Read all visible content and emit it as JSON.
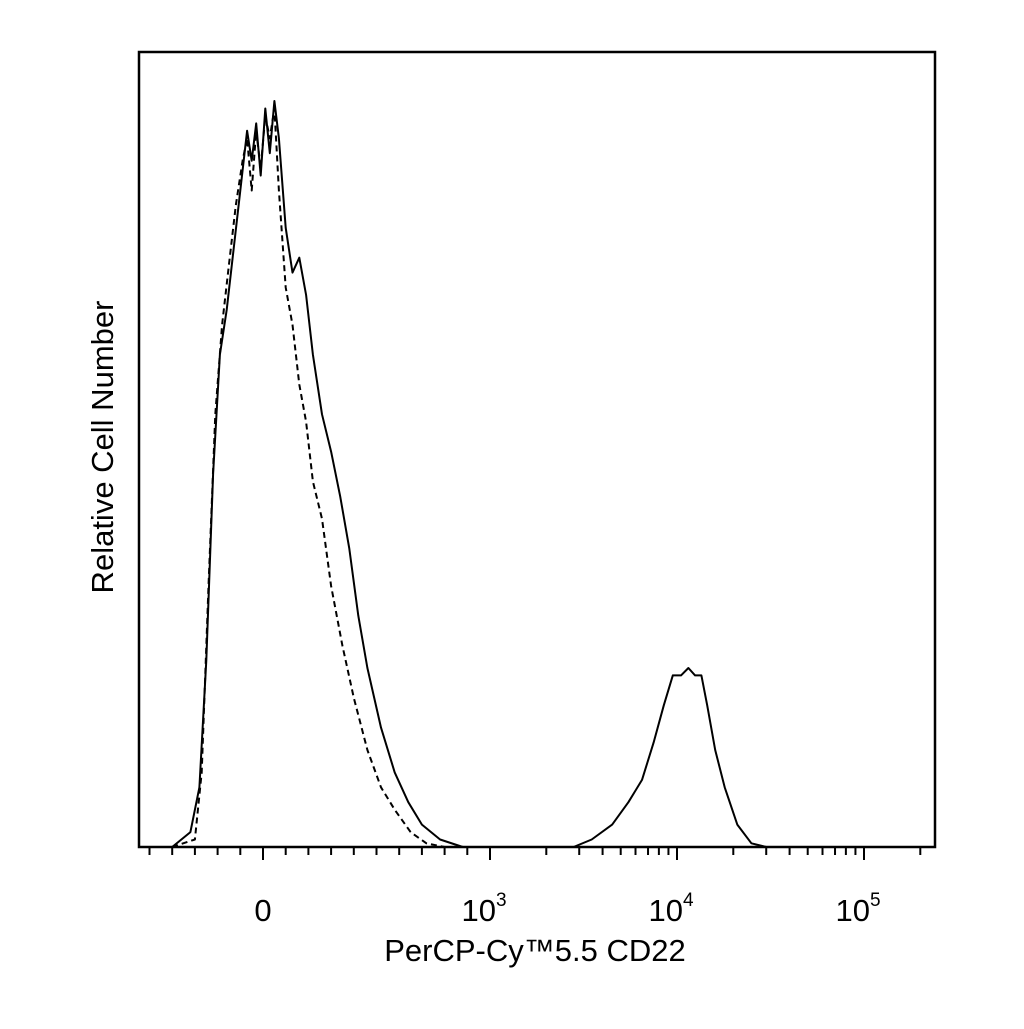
{
  "chart_data": {
    "type": "histogram",
    "xlabel": "PerCP-Cy™5.5 CD22",
    "ylabel": "Relative Cell Number",
    "x_scale": "biexponential (logicle)",
    "x_ticks": [
      {
        "value": 0,
        "label": "0",
        "exp": ""
      },
      {
        "value": 1000,
        "label": "10",
        "exp": "3"
      },
      {
        "value": 10000,
        "label": "10",
        "exp": "4"
      },
      {
        "value": 100000,
        "label": "10",
        "exp": "5"
      }
    ],
    "grid": false,
    "legend": "none",
    "series": [
      {
        "style": "solid",
        "points": [
          [
            -400,
            0
          ],
          [
            -320,
            0.02
          ],
          [
            -280,
            0.08
          ],
          [
            -250,
            0.25
          ],
          [
            -220,
            0.5
          ],
          [
            -190,
            0.66
          ],
          [
            -160,
            0.72
          ],
          [
            -130,
            0.8
          ],
          [
            -100,
            0.88
          ],
          [
            -70,
            0.96
          ],
          [
            -50,
            0.92
          ],
          [
            -30,
            0.97
          ],
          [
            -10,
            0.9
          ],
          [
            10,
            0.99
          ],
          [
            30,
            0.93
          ],
          [
            50,
            1.0
          ],
          [
            70,
            0.95
          ],
          [
            100,
            0.83
          ],
          [
            130,
            0.77
          ],
          [
            160,
            0.79
          ],
          [
            190,
            0.74
          ],
          [
            220,
            0.66
          ],
          [
            260,
            0.58
          ],
          [
            300,
            0.53
          ],
          [
            340,
            0.47
          ],
          [
            380,
            0.4
          ],
          [
            420,
            0.31
          ],
          [
            460,
            0.24
          ],
          [
            520,
            0.16
          ],
          [
            580,
            0.1
          ],
          [
            640,
            0.06
          ],
          [
            700,
            0.03
          ],
          [
            780,
            0.01
          ],
          [
            880,
            0
          ],
          [
            1500,
            0
          ],
          [
            2800,
            0
          ],
          [
            3500,
            0.01
          ],
          [
            4500,
            0.03
          ],
          [
            5500,
            0.06
          ],
          [
            6500,
            0.09
          ],
          [
            7500,
            0.14
          ],
          [
            8500,
            0.19
          ],
          [
            9500,
            0.23
          ],
          [
            10500,
            0.23
          ],
          [
            11500,
            0.24
          ],
          [
            12500,
            0.23
          ],
          [
            13500,
            0.23
          ],
          [
            14500,
            0.19
          ],
          [
            16000,
            0.13
          ],
          [
            18000,
            0.08
          ],
          [
            21000,
            0.03
          ],
          [
            25000,
            0.005
          ],
          [
            30000,
            0
          ],
          [
            200000,
            0
          ]
        ]
      },
      {
        "style": "dashed",
        "points": [
          [
            -400,
            0
          ],
          [
            -300,
            0.01
          ],
          [
            -270,
            0.1
          ],
          [
            -240,
            0.35
          ],
          [
            -210,
            0.58
          ],
          [
            -180,
            0.7
          ],
          [
            -150,
            0.78
          ],
          [
            -120,
            0.86
          ],
          [
            -90,
            0.92
          ],
          [
            -70,
            0.95
          ],
          [
            -50,
            0.88
          ],
          [
            -30,
            0.96
          ],
          [
            -10,
            0.91
          ],
          [
            10,
            0.98
          ],
          [
            30,
            0.95
          ],
          [
            50,
            0.99
          ],
          [
            70,
            0.88
          ],
          [
            100,
            0.75
          ],
          [
            130,
            0.7
          ],
          [
            160,
            0.62
          ],
          [
            190,
            0.57
          ],
          [
            220,
            0.49
          ],
          [
            260,
            0.44
          ],
          [
            300,
            0.35
          ],
          [
            350,
            0.27
          ],
          [
            400,
            0.2
          ],
          [
            460,
            0.13
          ],
          [
            520,
            0.08
          ],
          [
            580,
            0.05
          ],
          [
            650,
            0.02
          ],
          [
            720,
            0.005
          ],
          [
            800,
            0
          ],
          [
            200000,
            0
          ]
        ]
      }
    ]
  }
}
